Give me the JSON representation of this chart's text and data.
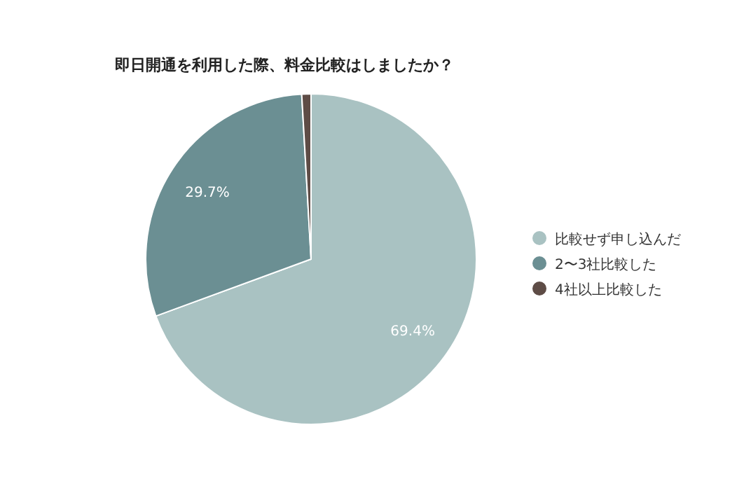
{
  "chart_data": {
    "type": "pie",
    "title": "即日開通を利用した際、料金比較はしましたか？",
    "categories": [
      "比較せず申し込んだ",
      "2〜3社比較した",
      "4社以上比較した"
    ],
    "values": [
      69.4,
      29.7,
      0.9
    ],
    "colors": [
      "#a9c2c2",
      "#6b8f93",
      "#5e4c46"
    ],
    "value_labels": [
      "69.4%",
      "29.7%",
      null
    ],
    "legend": "right"
  }
}
